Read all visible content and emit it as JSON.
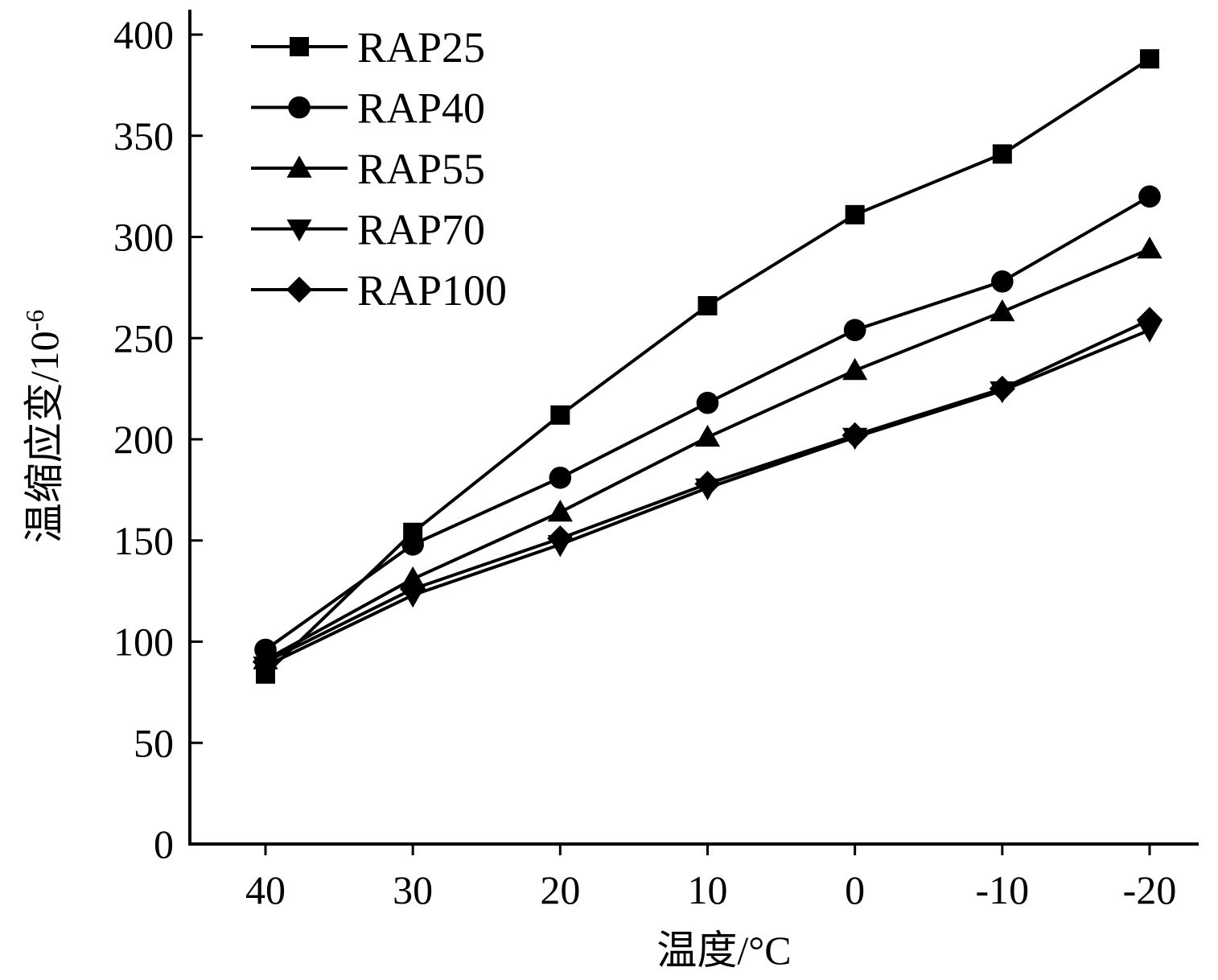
{
  "chart_data": {
    "type": "line",
    "title": "",
    "xlabel": "温度/°C",
    "ylabel_main": "温缩应变/10",
    "ylabel_sup": "-6",
    "categories": [
      "40",
      "30",
      "20",
      "10",
      "0",
      "-10",
      "-20"
    ],
    "x": [
      40,
      30,
      20,
      10,
      0,
      -10,
      -20
    ],
    "ylim": [
      0,
      400
    ],
    "yticks": [
      0,
      50,
      100,
      150,
      200,
      250,
      300,
      350,
      400
    ],
    "ytick_labels": [
      "0",
      "50",
      "100",
      "150",
      "200",
      "250",
      "300",
      "350",
      "400"
    ],
    "grid": false,
    "legend_position": "top-left",
    "series": [
      {
        "name": "RAP25",
        "marker": "square",
        "values": [
          84,
          154,
          212,
          266,
          311,
          341,
          388
        ]
      },
      {
        "name": "RAP40",
        "marker": "circle",
        "values": [
          96,
          148,
          181,
          218,
          254,
          278,
          320
        ]
      },
      {
        "name": "RAP55",
        "marker": "triangle-up",
        "values": [
          91,
          131,
          164,
          201,
          234,
          263,
          294
        ]
      },
      {
        "name": "RAP70",
        "marker": "triangle-down",
        "values": [
          88,
          123,
          148,
          176,
          201,
          224,
          254
        ]
      },
      {
        "name": "RAP100",
        "marker": "diamond",
        "values": [
          90,
          126,
          151,
          178,
          202,
          225,
          259
        ]
      }
    ]
  }
}
